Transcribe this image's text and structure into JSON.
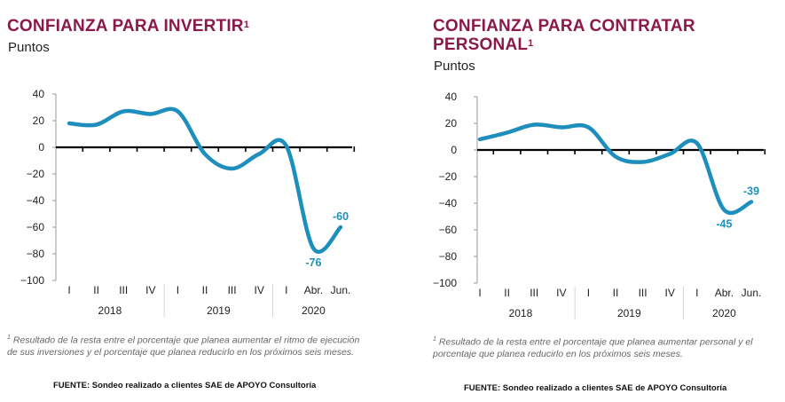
{
  "charts": [
    {
      "title": "CONFIANZA PARA INVERTIR",
      "title_sup": "1",
      "subtitle": "Puntos",
      "footnote_sup": "1",
      "footnote": "Resultado de la resta entre el porcentaje que planea aumentar el ritmo de ejecución de sus inversiones y el porcentaje que planea reducirlo en los próximos seis meses.",
      "source": "FUENTE: Sondeo realizado a clientes SAE de APOYO Consultoría"
    },
    {
      "title": "CONFIANZA PARA CONTRATAR PERSONAL",
      "title_sup": "1",
      "subtitle": "Puntos",
      "footnote_sup": "1",
      "footnote": "Resultado de la resta entre el porcentaje que planea aumentar personal y el porcentaje que planea reducirlo en los próximos seis meses.",
      "source": "FUENTE: Sondeo realizado a clientes SAE de APOYO Consultoría"
    }
  ],
  "chart_data": [
    {
      "type": "line",
      "title": "CONFIANZA PARA INVERTIR",
      "ylabel": "Puntos",
      "ylim": [
        -100,
        40
      ],
      "yticks": [
        40,
        20,
        0,
        -20,
        -40,
        -60,
        -80,
        -100
      ],
      "grid": false,
      "color": "#1e8fbd",
      "categories": [
        "I",
        "II",
        "III",
        "IV",
        "I",
        "II",
        "III",
        "IV",
        "I",
        "Abr.",
        "Jun."
      ],
      "years": [
        {
          "label": "2018",
          "start": 0,
          "end": 3
        },
        {
          "label": "2019",
          "start": 4,
          "end": 7
        },
        {
          "label": "2020",
          "start": 8,
          "end": 10
        }
      ],
      "values": [
        18,
        17,
        27,
        25,
        27,
        -5,
        -16,
        -5,
        1,
        -76,
        -60
      ],
      "data_labels": [
        {
          "index": 9,
          "text": "-76",
          "position": "below"
        },
        {
          "index": 10,
          "text": "-60",
          "position": "above"
        }
      ]
    },
    {
      "type": "line",
      "title": "CONFIANZA PARA CONTRATAR PERSONAL",
      "ylabel": "Puntos",
      "ylim": [
        -100,
        40
      ],
      "yticks": [
        40,
        20,
        0,
        -20,
        -40,
        -60,
        -80,
        -100
      ],
      "grid": false,
      "color": "#1e8fbd",
      "categories": [
        "I",
        "II",
        "III",
        "IV",
        "I",
        "II",
        "III",
        "IV",
        "I",
        "Abr.",
        "Jun."
      ],
      "years": [
        {
          "label": "2018",
          "start": 0,
          "end": 3
        },
        {
          "label": "2019",
          "start": 4,
          "end": 7
        },
        {
          "label": "2020",
          "start": 8,
          "end": 10
        }
      ],
      "values": [
        8,
        13,
        19,
        17,
        17,
        -5,
        -9,
        -3,
        5,
        -45,
        -39
      ],
      "data_labels": [
        {
          "index": 9,
          "text": "-45",
          "position": "below"
        },
        {
          "index": 10,
          "text": "-39",
          "position": "above"
        }
      ]
    }
  ]
}
